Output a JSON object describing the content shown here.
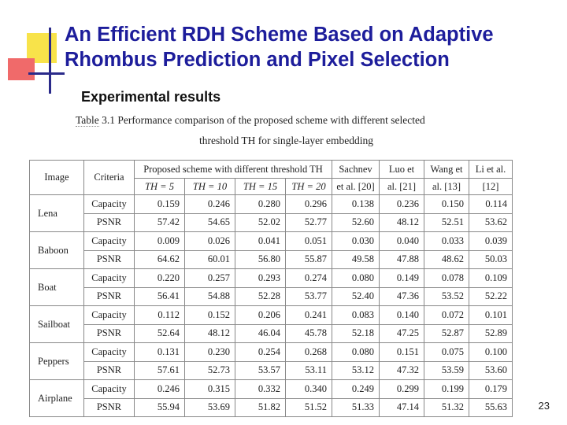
{
  "title_lines": [
    "An Efficient RDH Scheme Based on Adaptive",
    "Rhombus Prediction and Pixel Selection"
  ],
  "subtitle": "Experimental results",
  "caption": {
    "label": "Table",
    "line1_rest": "3.1 Performance comparison of the proposed scheme with different selected",
    "line2": "threshold TH for single-layer embedding"
  },
  "table": {
    "headers": {
      "image": "Image",
      "criteria": "Criteria",
      "proposed_group": "Proposed scheme with different threshold TH",
      "th_values": [
        "TH = 5",
        "TH = 10",
        "TH = 15",
        "TH = 20"
      ],
      "others_top": [
        "Sachnev",
        "Luo et",
        "Wang et",
        "Li et al."
      ],
      "others_bottom": [
        "et al. [20]",
        "al. [21]",
        "al. [13]",
        "[12]"
      ]
    },
    "rows": [
      {
        "image": "Lena",
        "criteria": "Capacity",
        "values": [
          "0.159",
          "0.246",
          "0.280",
          "0.296",
          "0.138",
          "0.236",
          "0.150",
          "0.114"
        ]
      },
      {
        "image": "",
        "criteria": "PSNR",
        "values": [
          "57.42",
          "54.65",
          "52.02",
          "52.77",
          "52.60",
          "48.12",
          "52.51",
          "53.62"
        ]
      },
      {
        "image": "Baboon",
        "criteria": "Capacity",
        "values": [
          "0.009",
          "0.026",
          "0.041",
          "0.051",
          "0.030",
          "0.040",
          "0.033",
          "0.039"
        ]
      },
      {
        "image": "",
        "criteria": "PSNR",
        "values": [
          "64.62",
          "60.01",
          "56.80",
          "55.87",
          "49.58",
          "47.88",
          "48.62",
          "50.03"
        ]
      },
      {
        "image": "Boat",
        "criteria": "Capacity",
        "values": [
          "0.220",
          "0.257",
          "0.293",
          "0.274",
          "0.080",
          "0.149",
          "0.078",
          "0.109"
        ]
      },
      {
        "image": "",
        "criteria": "PSNR",
        "values": [
          "56.41",
          "54.88",
          "52.28",
          "53.77",
          "52.40",
          "47.36",
          "53.52",
          "52.22"
        ]
      },
      {
        "image": "Sailboat",
        "criteria": "Capacity",
        "values": [
          "0.112",
          "0.152",
          "0.206",
          "0.241",
          "0.083",
          "0.140",
          "0.072",
          "0.101"
        ]
      },
      {
        "image": "",
        "criteria": "PSNR",
        "values": [
          "52.64",
          "48.12",
          "46.04",
          "45.78",
          "52.18",
          "47.25",
          "52.87",
          "52.89"
        ]
      },
      {
        "image": "Peppers",
        "criteria": "Capacity",
        "values": [
          "0.131",
          "0.230",
          "0.254",
          "0.268",
          "0.080",
          "0.151",
          "0.075",
          "0.100"
        ]
      },
      {
        "image": "",
        "criteria": "PSNR",
        "values": [
          "57.61",
          "52.73",
          "53.57",
          "53.11",
          "53.12",
          "47.32",
          "53.59",
          "53.60"
        ]
      },
      {
        "image": "Airplane",
        "criteria": "Capacity",
        "values": [
          "0.246",
          "0.315",
          "0.332",
          "0.340",
          "0.249",
          "0.299",
          "0.199",
          "0.179"
        ]
      },
      {
        "image": "",
        "criteria": "PSNR",
        "values": [
          "55.94",
          "53.69",
          "51.82",
          "51.52",
          "51.33",
          "47.14",
          "51.32",
          "55.63"
        ]
      }
    ]
  },
  "page_number": "23",
  "colors": {
    "title": "#1d1d9b",
    "accent_yellow": "#f8e34a",
    "accent_red": "#f06a6a",
    "accent_line": "#2a2a8a"
  }
}
